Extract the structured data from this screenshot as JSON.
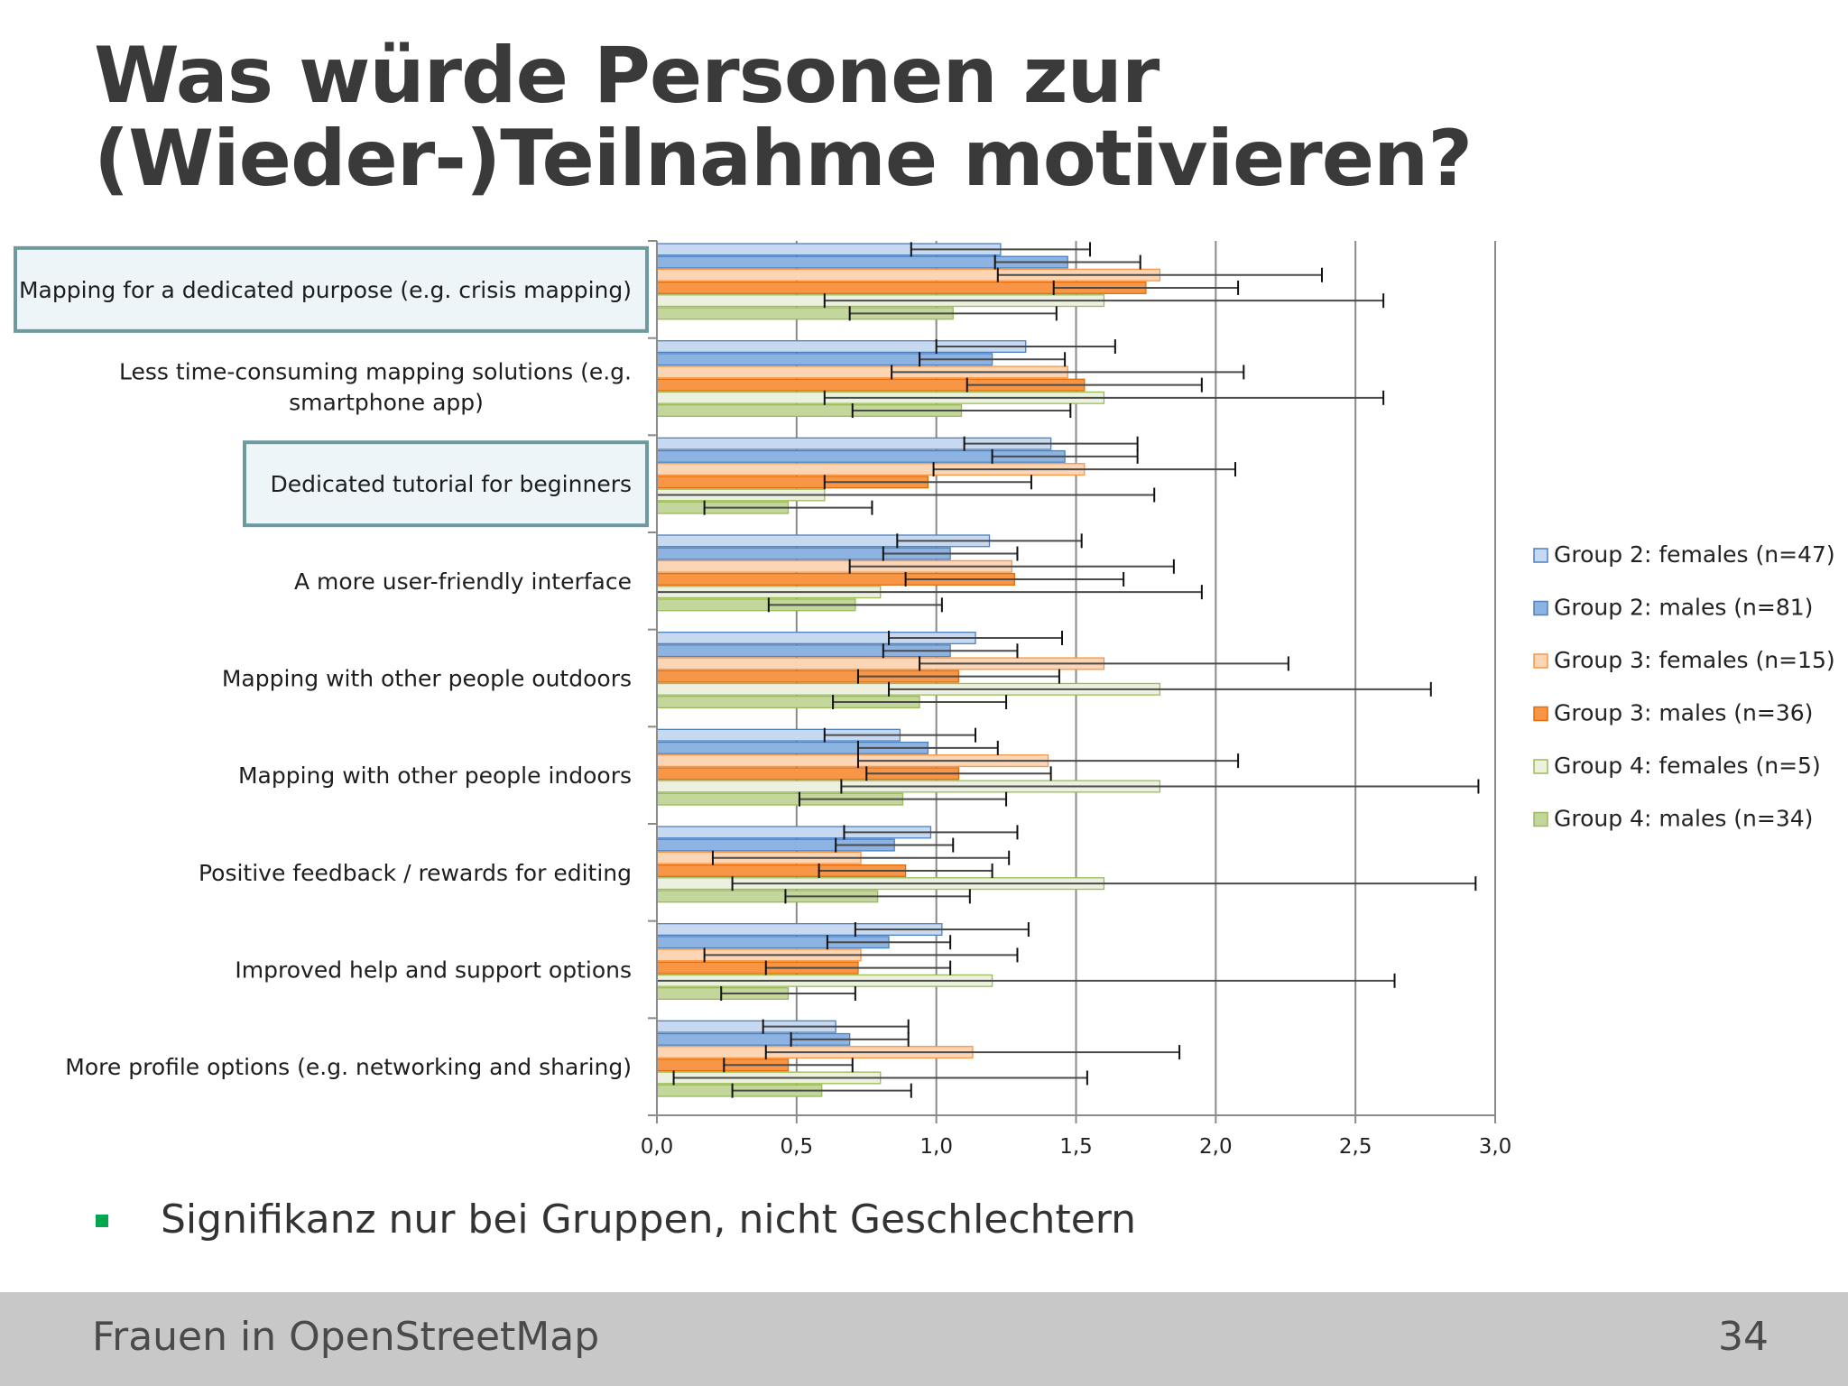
{
  "slide": {
    "title_lines": [
      "Was würde Personen zur",
      "(Wieder-)Teilnahme motivieren?"
    ],
    "bullet": "Signifikanz nur bei Gruppen, nicht Geschlechtern",
    "footer_title": "Frauen in OpenStreetMap",
    "page_number": "34"
  },
  "chart_data": {
    "type": "bar",
    "orientation": "horizontal",
    "categories": [
      "Mapping for a dedicated purpose (e.g. crisis mapping)",
      "Less time-consuming mapping solutions (e.g. smartphone app)",
      "Dedicated tutorial for beginners",
      "A more user-friendly interface",
      "Mapping with other people outdoors",
      "Mapping with other people indoors",
      "Positive feedback / rewards for editing",
      "Improved help and support options",
      "More profile options (e.g. networking and sharing)"
    ],
    "highlighted_categories": [
      0,
      2
    ],
    "xlim": [
      0,
      3.0
    ],
    "xticks": [
      "0,0",
      "0,5",
      "1,0",
      "1,5",
      "2,0",
      "2,5",
      "3,0"
    ],
    "grid": "vertical",
    "legend_position": "right",
    "error_bars": true,
    "series": [
      {
        "name": "Group 2: females (n=47)",
        "fill": "#c6d9f1",
        "stroke": "#4f81bd",
        "values": [
          1.23,
          1.32,
          1.41,
          1.19,
          1.14,
          0.87,
          0.98,
          1.02,
          0.64
        ],
        "errors": [
          0.32,
          0.32,
          0.31,
          0.33,
          0.31,
          0.27,
          0.31,
          0.31,
          0.26
        ]
      },
      {
        "name": "Group 2: males (n=81)",
        "fill": "#8db3e2",
        "stroke": "#4f81bd",
        "values": [
          1.47,
          1.2,
          1.46,
          1.05,
          1.05,
          0.97,
          0.85,
          0.83,
          0.69
        ],
        "errors": [
          0.26,
          0.26,
          0.26,
          0.24,
          0.24,
          0.25,
          0.21,
          0.22,
          0.21
        ]
      },
      {
        "name": "Group 3: females (n=15)",
        "fill": "#fcd5b5",
        "stroke": "#f79646",
        "values": [
          1.8,
          1.47,
          1.53,
          1.27,
          1.6,
          1.4,
          0.73,
          0.73,
          1.13
        ],
        "errors": [
          0.58,
          0.63,
          0.54,
          0.58,
          0.66,
          0.68,
          0.53,
          0.56,
          0.74
        ]
      },
      {
        "name": "Group 3: males (n=36)",
        "fill": "#f79646",
        "stroke": "#e46c0a",
        "values": [
          1.75,
          1.53,
          0.97,
          1.28,
          1.08,
          1.08,
          0.89,
          0.72,
          0.47
        ],
        "errors": [
          0.33,
          0.42,
          0.37,
          0.39,
          0.36,
          0.33,
          0.31,
          0.33,
          0.23
        ]
      },
      {
        "name": "Group 4: females (n=5)",
        "fill": "#ebf1de",
        "stroke": "#9bbb59",
        "values": [
          1.6,
          1.6,
          0.6,
          0.8,
          1.8,
          1.8,
          1.6,
          1.2,
          0.8
        ],
        "errors": [
          1.0,
          1.0,
          1.18,
          1.15,
          0.97,
          1.14,
          1.33,
          1.44,
          0.74
        ]
      },
      {
        "name": "Group 4: males (n=34)",
        "fill": "#c3d69b",
        "stroke": "#9bbb59",
        "values": [
          1.06,
          1.09,
          0.47,
          0.71,
          0.94,
          0.88,
          0.79,
          0.47,
          0.59
        ],
        "errors": [
          0.37,
          0.39,
          0.3,
          0.31,
          0.31,
          0.37,
          0.33,
          0.24,
          0.32
        ]
      }
    ]
  }
}
